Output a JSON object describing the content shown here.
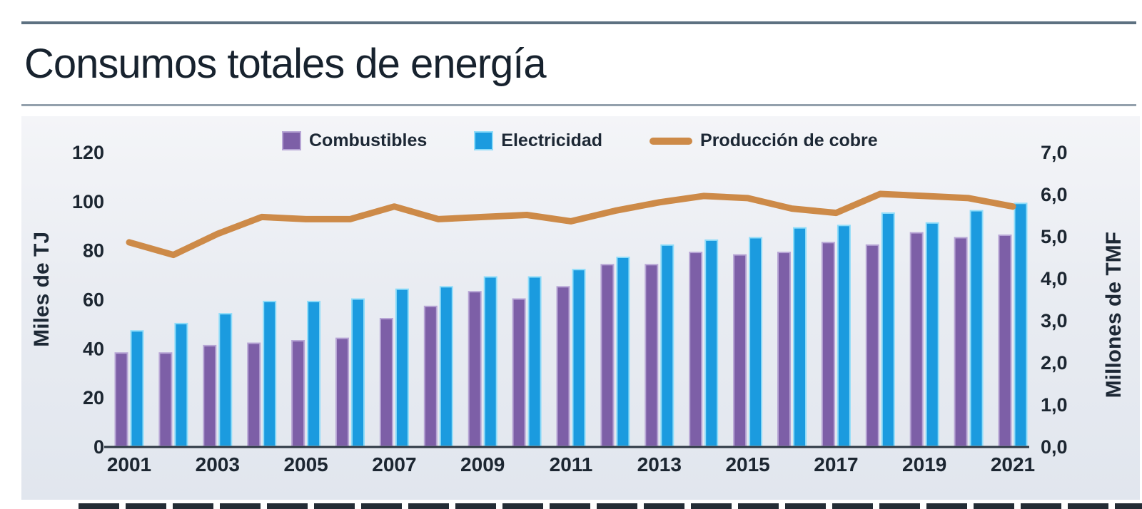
{
  "page": {
    "title": "Consumos totales de energía"
  },
  "chart_data": {
    "type": "bar",
    "subtype": "grouped bars with overlay line",
    "title": "Consumos totales de energía",
    "categories": [
      "2001",
      "2002",
      "2003",
      "2004",
      "2005",
      "2006",
      "2007",
      "2008",
      "2009",
      "2010",
      "2011",
      "2012",
      "2013",
      "2014",
      "2015",
      "2016",
      "2017",
      "2018",
      "2019",
      "2020",
      "2021"
    ],
    "series": [
      {
        "name": "Combustibles",
        "type": "bar",
        "axis": "left",
        "color": "#7d5fa7",
        "edge": "#b7a5d5",
        "values": [
          38,
          38,
          41,
          42,
          43,
          44,
          52,
          57,
          63,
          60,
          65,
          74,
          74,
          79,
          78,
          79,
          83,
          82,
          87,
          85,
          86
        ]
      },
      {
        "name": "Electricidad",
        "type": "bar",
        "axis": "left",
        "color": "#1b9bdf",
        "edge": "#8fdcf9",
        "values": [
          47,
          50,
          54,
          59,
          59,
          60,
          64,
          65,
          69,
          69,
          72,
          77,
          82,
          84,
          85,
          89,
          90,
          95,
          91,
          96,
          99
        ]
      },
      {
        "name": "Producción de cobre",
        "type": "line",
        "axis": "right",
        "color": "#cd8a48",
        "values": [
          4.85,
          4.55,
          5.05,
          5.45,
          5.4,
          5.4,
          5.7,
          5.4,
          5.45,
          5.5,
          5.35,
          5.6,
          5.8,
          5.95,
          5.9,
          5.65,
          5.55,
          6.0,
          5.95,
          5.9,
          5.7
        ]
      }
    ],
    "left_axis": {
      "title": "Miles de TJ",
      "min": 0,
      "max": 120,
      "tick_step": 20,
      "ticks": [
        0,
        20,
        40,
        60,
        80,
        100,
        120
      ],
      "tick_labels": [
        "0",
        "20",
        "40",
        "60",
        "80",
        "100",
        "120"
      ]
    },
    "right_axis": {
      "title": "Millones de TMF",
      "min": 0,
      "max": 7,
      "tick_step": 1,
      "ticks": [
        0,
        1,
        2,
        3,
        4,
        5,
        6,
        7
      ],
      "tick_labels": [
        "0,0",
        "1,0",
        "2,0",
        "3,0",
        "4,0",
        "5,0",
        "6,0",
        "7,0"
      ]
    },
    "x_tick_labels": [
      "2001",
      "2003",
      "2005",
      "2007",
      "2009",
      "2011",
      "2013",
      "2015",
      "2017",
      "2019",
      "2021"
    ],
    "grid": false,
    "legend_position": "top"
  }
}
